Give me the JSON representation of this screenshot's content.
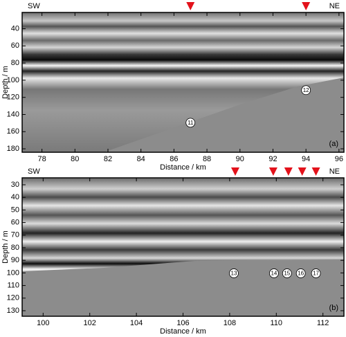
{
  "chart_data": [
    {
      "type": "image",
      "left_label": "SW",
      "right_label": "NE",
      "panel_label": "(a)",
      "xlabel": "Distance / km",
      "ylabel": "Depth / m",
      "xlim": [
        76.8,
        96.3
      ],
      "ylim": [
        21,
        184
      ],
      "y_inverted": true,
      "xticks": [
        78,
        80,
        82,
        84,
        86,
        88,
        90,
        92,
        94,
        96
      ],
      "yticks": [
        40,
        60,
        80,
        100,
        120,
        140,
        160,
        180
      ],
      "markers": {
        "color": "#e3121b",
        "x": [
          87.0,
          94.0
        ]
      },
      "annotations": [
        {
          "label": "11",
          "x": 87.0,
          "y": 149.6
        },
        {
          "label": "12",
          "x": 94.0,
          "y": 111.6
        }
      ]
    },
    {
      "type": "image",
      "left_label": "SW",
      "right_label": "NE",
      "panel_label": "(b)",
      "xlabel": "Distance / km",
      "ylabel": "Depth / m",
      "xlim": [
        99.1,
        112.9
      ],
      "ylim": [
        24.5,
        134.4
      ],
      "y_inverted": true,
      "xticks": [
        100,
        102,
        104,
        106,
        108,
        110,
        112
      ],
      "yticks": [
        30,
        40,
        50,
        60,
        70,
        80,
        90,
        100,
        110,
        120,
        130
      ],
      "markers": {
        "color": "#e3121b",
        "x": [
          108.24,
          109.87,
          110.52,
          111.11,
          111.7
        ]
      },
      "annotations": [
        {
          "label": "13",
          "x": 108.18,
          "y": 100.3
        },
        {
          "label": "14",
          "x": 109.9,
          "y": 100.3
        },
        {
          "label": "15",
          "x": 110.46,
          "y": 100.3
        },
        {
          "label": "16",
          "x": 111.05,
          "y": 100.3
        },
        {
          "label": "17",
          "x": 111.7,
          "y": 100.3
        }
      ]
    }
  ]
}
